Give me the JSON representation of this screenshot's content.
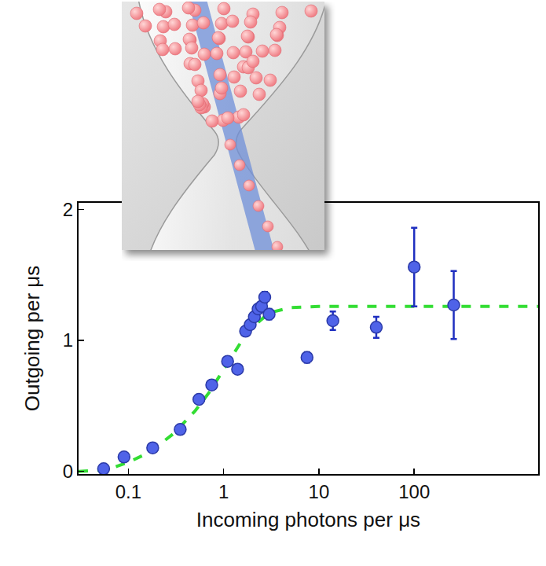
{
  "chart_data": {
    "type": "scatter",
    "x_label": "Incoming photons per μs",
    "y_label": "Outgoing per μs",
    "log": "x",
    "grid": false,
    "xlim": [
      0.03,
      2000
    ],
    "xticks": [
      0.1,
      1,
      10,
      100
    ],
    "ylim": [
      -0.02,
      2.05
    ],
    "yticks": [
      0,
      1,
      2
    ],
    "series": [
      {
        "type": "scatter",
        "color": "#4f63e8",
        "marker": "circle",
        "x": [
          0.055,
          0.09,
          0.18,
          0.35,
          0.55,
          0.75,
          1.1,
          1.4,
          1.7,
          1.9,
          2.1,
          2.3,
          2.5,
          2.7,
          3.0,
          7.5,
          14,
          40,
          100,
          260
        ],
        "values": [
          0.02,
          0.11,
          0.18,
          0.32,
          0.55,
          0.66,
          0.84,
          0.78,
          1.07,
          1.12,
          1.18,
          1.24,
          1.26,
          1.33,
          1.2,
          0.87,
          1.15,
          1.1,
          1.56,
          1.27
        ],
        "errors": [
          0.02,
          0.02,
          0.02,
          0.02,
          0.03,
          0.03,
          0.03,
          0.03,
          0.03,
          0.03,
          0.03,
          0.03,
          0.03,
          0.04,
          0.04,
          0.04,
          0.07,
          0.08,
          0.3,
          0.26
        ]
      },
      {
        "type": "line",
        "color": "#33dd33",
        "line_style": "dash",
        "x": [
          0.03,
          0.05,
          0.07,
          0.1,
          0.15,
          0.2,
          0.3,
          0.5,
          0.7,
          1,
          1.5,
          2,
          3,
          5,
          10,
          30,
          100,
          300,
          1000,
          2000
        ],
        "values": [
          0.0,
          0.01,
          0.03,
          0.07,
          0.13,
          0.19,
          0.29,
          0.46,
          0.6,
          0.78,
          0.98,
          1.1,
          1.21,
          1.25,
          1.26,
          1.26,
          1.26,
          1.26,
          1.26,
          1.26
        ]
      }
    ]
  }
}
